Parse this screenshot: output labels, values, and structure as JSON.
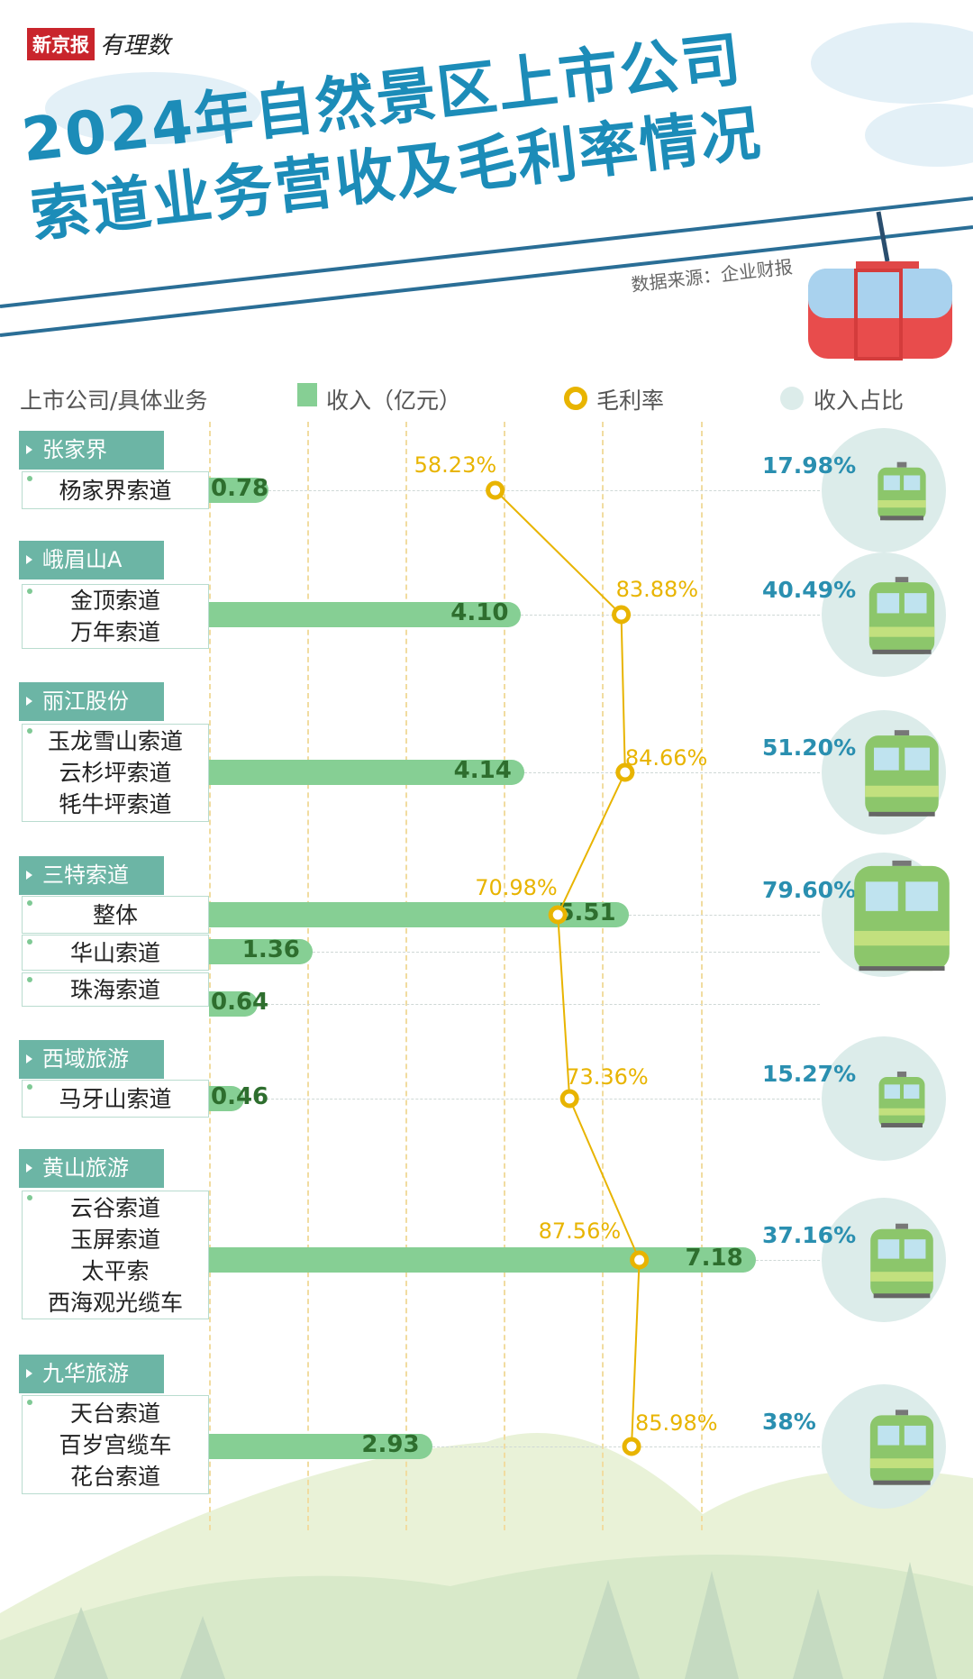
{
  "header": {
    "logo_brand": "新京报",
    "logo_column": "有理数",
    "title_line1": "2024年自然景区上市公司",
    "title_line2": "索道业务营收及毛利率情况",
    "source": "数据来源：企业财报"
  },
  "legend": {
    "category": "上市公司/具体业务",
    "revenue": "收入（亿元）",
    "margin": "毛利率",
    "share": "收入占比"
  },
  "colors": {
    "title": "#1c8cb8",
    "tab": "#6cb5a5",
    "bar": "#86cf94",
    "margin": "#e8b400",
    "share": "#2a8fb0",
    "circle": "#dcecea"
  },
  "chart_data": {
    "type": "bar",
    "title": "2024年自然景区上市公司索道业务营收及毛利率情况",
    "xlabel": "收入（亿元）",
    "series_names": [
      "收入（亿元）",
      "毛利率",
      "收入占比"
    ],
    "grid": true,
    "companies": [
      {
        "name": "张家界",
        "rows": [
          {
            "services": [
              "杨家界索道"
            ],
            "revenue": "0.78",
            "margin": "58.23%",
            "share": "17.98%"
          }
        ]
      },
      {
        "name": "峨眉山A",
        "rows": [
          {
            "services": [
              "金顶索道",
              "万年索道"
            ],
            "revenue": "4.10",
            "margin": "83.88%",
            "share": "40.49%"
          }
        ]
      },
      {
        "name": "丽江股份",
        "rows": [
          {
            "services": [
              "玉龙雪山索道",
              "云杉坪索道",
              "牦牛坪索道"
            ],
            "revenue": "4.14",
            "margin": "84.66%",
            "share": "51.20%"
          }
        ]
      },
      {
        "name": "三特索道",
        "rows": [
          {
            "services": [
              "整体"
            ],
            "revenue": "5.51",
            "margin": "70.98%",
            "share": "79.60%"
          },
          {
            "services": [
              "华山索道"
            ],
            "revenue": "1.36"
          },
          {
            "services": [
              "珠海索道"
            ],
            "revenue": "0.64"
          }
        ]
      },
      {
        "name": "西域旅游",
        "rows": [
          {
            "services": [
              "马牙山索道"
            ],
            "revenue": "0.46",
            "margin": "73.36%",
            "share": "15.27%"
          }
        ]
      },
      {
        "name": "黄山旅游",
        "rows": [
          {
            "services": [
              "云谷索道",
              "玉屏索道",
              "太平索",
              "西海观光缆车"
            ],
            "revenue": "7.18",
            "margin": "87.56%",
            "share": "37.16%"
          }
        ]
      },
      {
        "name": "九华旅游",
        "rows": [
          {
            "services": [
              "天台索道",
              "百岁宫缆车",
              "花台索道"
            ],
            "revenue": "2.93",
            "margin": "85.98%",
            "share": "38%"
          }
        ]
      }
    ]
  }
}
